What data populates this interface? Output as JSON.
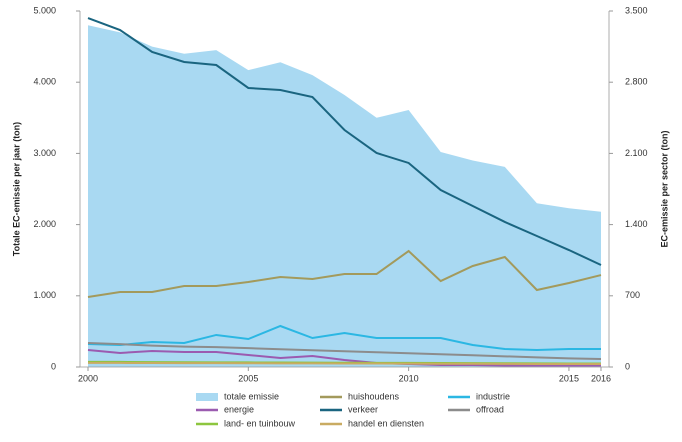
{
  "chart_data": {
    "type": "line",
    "x": [
      2000,
      2001,
      2002,
      2003,
      2004,
      2005,
      2006,
      2007,
      2008,
      2009,
      2010,
      2011,
      2012,
      2013,
      2014,
      2015,
      2016
    ],
    "xlim": [
      2000,
      2016
    ],
    "xticks": [
      2000,
      2005,
      2010,
      2015,
      2016
    ],
    "ylim": [
      0,
      5000
    ],
    "yticks": [
      0,
      {
        "value": 1000,
        "label": "1.000"
      },
      {
        "value": 2000,
        "label": "2.000"
      },
      {
        "value": 3000,
        "label": "3.000"
      },
      {
        "value": 4000,
        "label": "4.000"
      },
      {
        "value": 5000,
        "label": "5.000"
      }
    ],
    "y2lim": [
      0,
      3500
    ],
    "y2ticks": [
      0,
      700,
      {
        "value": 1400,
        "label": "1.400"
      },
      {
        "value": 2100,
        "label": "2.100"
      },
      {
        "value": 2800,
        "label": "2.800"
      },
      {
        "value": 3500,
        "label": "3.500"
      }
    ],
    "ylabel": "Totale EC-emissie per jaar (ton)",
    "y2label": "EC-emissie per sector (ton)",
    "series": [
      {
        "name": "totale emissie",
        "style": "area",
        "color": "#a9d9f2",
        "values": [
          4800,
          4700,
          4500,
          4400,
          4450,
          4170,
          4280,
          4100,
          3820,
          3500,
          3610,
          3020,
          2900,
          2810,
          2300,
          2230,
          2180
        ]
      },
      {
        "name": "energie",
        "axis": "y2",
        "color": "#9b5bb0",
        "values": [
          167,
          138,
          157,
          147,
          147,
          118,
          88,
          108,
          69,
          39,
          30,
          20,
          20,
          15,
          15,
          15,
          15
        ]
      },
      {
        "name": "land- en tuinbouw",
        "axis": "y2",
        "color": "#8dc63f",
        "values": [
          50,
          50,
          48,
          47,
          46,
          45,
          44,
          43,
          42,
          41,
          40,
          39,
          38,
          37,
          36,
          35,
          35
        ]
      },
      {
        "name": "huishoudens",
        "axis": "y2",
        "color": "#a39a5c",
        "values": [
          688,
          737,
          737,
          796,
          796,
          836,
          885,
          865,
          914,
          914,
          1140,
          845,
          993,
          1081,
          757,
          826,
          904
        ]
      },
      {
        "name": "verkeer",
        "axis": "y2",
        "color": "#1a6580",
        "values": [
          3431,
          3313,
          3097,
          2999,
          2969,
          2743,
          2723,
          2654,
          2330,
          2104,
          2006,
          1740,
          1583,
          1426,
          1288,
          1150,
          1003
        ]
      },
      {
        "name": "handel en diensten",
        "axis": "y2",
        "color": "#c9ab62",
        "values": [
          40,
          40,
          39,
          38,
          38,
          37,
          36,
          36,
          35,
          34,
          33,
          32,
          32,
          31,
          30,
          30,
          30
        ]
      },
      {
        "name": "industrie",
        "axis": "y2",
        "color": "#2bb7e3",
        "values": [
          226,
          216,
          246,
          236,
          315,
          275,
          403,
          285,
          334,
          285,
          285,
          285,
          216,
          177,
          167,
          177,
          177
        ]
      },
      {
        "name": "offroad",
        "axis": "y2",
        "color": "#8c8c8c",
        "values": [
          236,
          225,
          210,
          200,
          195,
          185,
          175,
          165,
          155,
          145,
          135,
          125,
          115,
          105,
          95,
          85,
          79
        ]
      }
    ]
  }
}
